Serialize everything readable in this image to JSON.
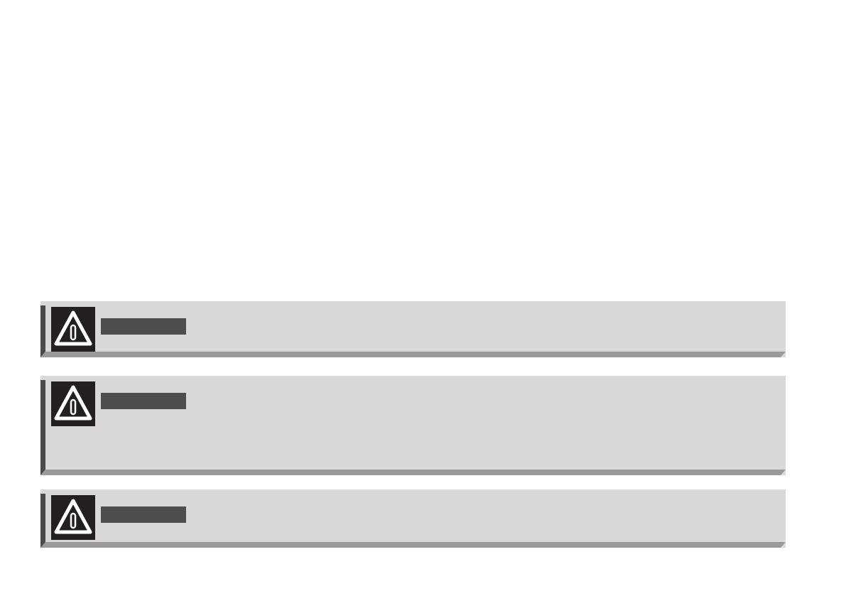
{
  "colors": {
    "panel_background": "#d9d9d9",
    "bevel_left": "#4a4a4a",
    "bevel_bottom": "#9a9a9a",
    "icon_background": "#231f20",
    "label_bar": "#4d4d4d"
  },
  "notices": [
    {
      "icon": "warning-triangle-icon"
    },
    {
      "icon": "warning-triangle-icon"
    },
    {
      "icon": "warning-triangle-icon"
    }
  ]
}
